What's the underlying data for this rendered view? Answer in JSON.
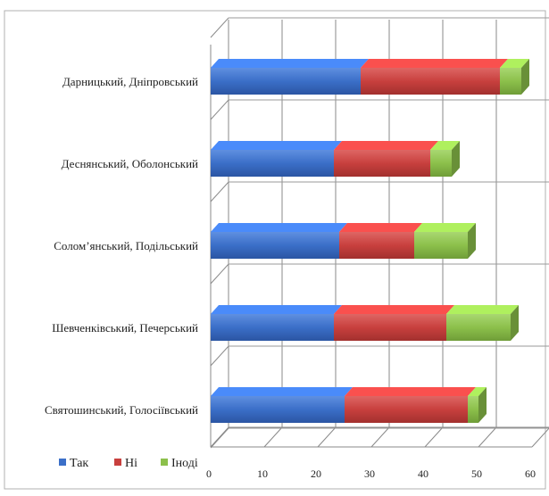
{
  "chart_data": {
    "type": "bar",
    "orientation": "horizontal",
    "stacked": true,
    "three_d": true,
    "categories": [
      "Дарницький, Дніпровський",
      "Деснянський, Оболонський",
      "Солом’янський, Подільський",
      "Шевченківський, Печерський",
      "Святошинський, Голосіївський"
    ],
    "series": [
      {
        "name": "Так",
        "color": "#3B6FC8",
        "values": [
          28,
          23,
          24,
          23,
          25
        ]
      },
      {
        "name": "Ні",
        "color": "#C8403E",
        "values": [
          26,
          18,
          14,
          21,
          23
        ]
      },
      {
        "name": "Іноді",
        "color": "#8CC04B",
        "values": [
          4,
          4,
          10,
          12,
          2
        ]
      }
    ],
    "xlim": [
      0,
      60
    ],
    "xticks": [
      "0",
      "10",
      "20",
      "30",
      "40",
      "50",
      "60"
    ],
    "grid": true,
    "legend": "bottom-left",
    "title": "",
    "xlabel": "",
    "ylabel": ""
  }
}
